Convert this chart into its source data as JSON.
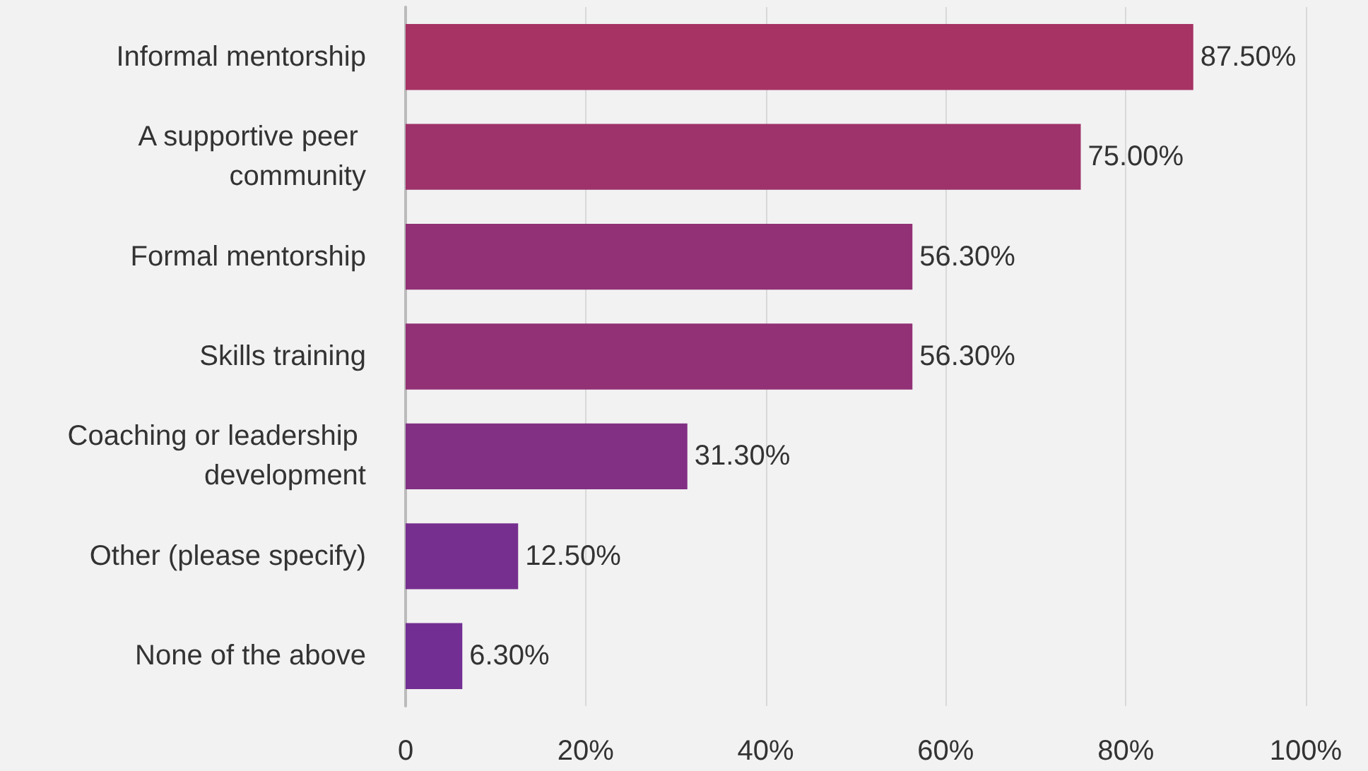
{
  "chart_data": {
    "type": "bar",
    "orientation": "horizontal",
    "categories": [
      "Informal mentorship",
      "A supportive peer community",
      "Formal mentorship",
      "Skills training",
      "Coaching or leadership development",
      "Other (please specify)",
      "None of the above"
    ],
    "values": [
      87.5,
      75.0,
      56.3,
      56.3,
      31.3,
      12.5,
      6.3
    ],
    "value_labels": [
      "87.50%",
      "75.00%",
      "56.30%",
      "56.30%",
      "31.30%",
      "12.50%",
      "6.30%"
    ],
    "colors": [
      "#a63364",
      "#9e326b",
      "#923176",
      "#923176",
      "#823084",
      "#762f8f",
      "#722e93"
    ],
    "xlim": [
      0,
      100
    ],
    "xticks": [
      0,
      {
        "value": 20,
        "label": "20%"
      },
      {
        "value": 40,
        "label": "40%"
      },
      {
        "value": 60,
        "label": "60%"
      },
      {
        "value": 80,
        "label": "80%"
      },
      {
        "value": 100,
        "label": "100%"
      }
    ],
    "grid": "x"
  }
}
